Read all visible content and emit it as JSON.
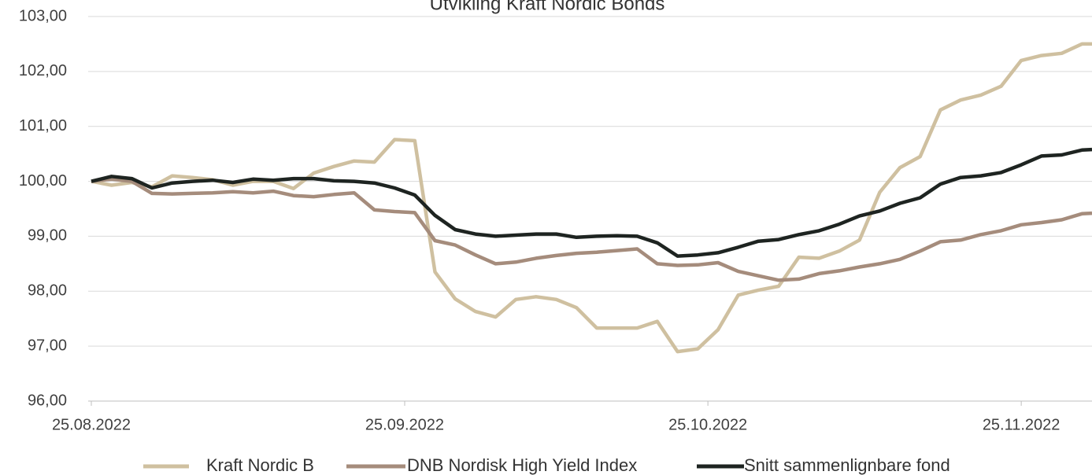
{
  "chart_data": {
    "type": "line",
    "title": "Utvikling Kraft Nordic Bonds",
    "x": [
      "25.08.2022",
      "27.08.2022",
      "29.08.2022",
      "31.08.2022",
      "02.09.2022",
      "04.09.2022",
      "06.09.2022",
      "08.09.2022",
      "10.09.2022",
      "12.09.2022",
      "14.09.2022",
      "16.09.2022",
      "18.09.2022",
      "20.09.2022",
      "22.09.2022",
      "24.09.2022",
      "26.09.2022",
      "28.09.2022",
      "30.09.2022",
      "02.10.2022",
      "04.10.2022",
      "06.10.2022",
      "08.10.2022",
      "10.10.2022",
      "12.10.2022",
      "14.10.2022",
      "16.10.2022",
      "18.10.2022",
      "20.10.2022",
      "22.10.2022",
      "24.10.2022",
      "26.10.2022",
      "28.10.2022",
      "30.10.2022",
      "01.11.2022",
      "03.11.2022",
      "05.11.2022",
      "07.11.2022",
      "09.11.2022",
      "11.11.2022",
      "13.11.2022",
      "15.11.2022",
      "17.11.2022",
      "19.11.2022",
      "21.11.2022",
      "23.11.2022",
      "25.11.2022",
      "27.11.2022",
      "29.11.2022",
      "01.12.2022",
      "02.12.2022"
    ],
    "series": [
      {
        "name": "Kraft Nordic B",
        "color": "#cfc0a0",
        "values": [
          100.0,
          99.93,
          99.98,
          99.9,
          100.1,
          100.07,
          100.03,
          99.93,
          100.0,
          100.0,
          99.87,
          100.15,
          100.27,
          100.37,
          100.35,
          100.76,
          100.74,
          98.35,
          97.86,
          97.63,
          97.53,
          97.85,
          97.9,
          97.85,
          97.7,
          97.33,
          97.33,
          97.33,
          97.45,
          96.9,
          96.95,
          97.3,
          97.93,
          98.02,
          98.09,
          98.62,
          98.6,
          98.73,
          98.93,
          99.8,
          100.25,
          100.45,
          101.3,
          101.48,
          101.57,
          101.73,
          102.2,
          102.29,
          102.33,
          102.5,
          102.5
        ]
      },
      {
        "name": "DNB Nordisk High Yield Index",
        "color": "#a58c7c",
        "values": [
          100.0,
          100.04,
          100.0,
          99.78,
          99.77,
          99.78,
          99.79,
          99.81,
          99.79,
          99.82,
          99.74,
          99.72,
          99.76,
          99.79,
          99.48,
          99.45,
          99.43,
          98.92,
          98.84,
          98.66,
          98.5,
          98.53,
          98.6,
          98.65,
          98.69,
          98.71,
          98.74,
          98.77,
          98.5,
          98.47,
          98.48,
          98.52,
          98.36,
          98.28,
          98.2,
          98.22,
          98.32,
          98.37,
          98.44,
          98.5,
          98.58,
          98.73,
          98.9,
          98.93,
          99.03,
          99.1,
          99.21,
          99.25,
          99.3,
          99.41,
          99.42
        ]
      },
      {
        "name": "Snitt sammenlignbare fond",
        "color": "#1e2421",
        "values": [
          100.0,
          100.09,
          100.05,
          99.88,
          99.97,
          100.0,
          100.02,
          99.98,
          100.04,
          100.02,
          100.05,
          100.05,
          100.01,
          100.0,
          99.97,
          99.88,
          99.75,
          99.38,
          99.12,
          99.04,
          99.0,
          99.02,
          99.04,
          99.04,
          98.98,
          99.0,
          99.01,
          99.0,
          98.88,
          98.64,
          98.66,
          98.7,
          98.8,
          98.91,
          98.94,
          99.03,
          99.1,
          99.22,
          99.37,
          99.46,
          99.6,
          99.7,
          99.95,
          100.07,
          100.1,
          100.16,
          100.3,
          100.46,
          100.48,
          100.57,
          100.58
        ]
      }
    ],
    "xlim": [
      "25.08.2022",
      "02.12.2022"
    ],
    "xticks": [
      "25.08.2022",
      "25.09.2022",
      "25.10.2022",
      "25.11.2022"
    ],
    "ylim": [
      96,
      103
    ],
    "yticks": [
      {
        "value": 96,
        "label": "96,00"
      },
      {
        "value": 97,
        "label": "97,00"
      },
      {
        "value": 98,
        "label": "98,00"
      },
      {
        "value": 99,
        "label": "99,00"
      },
      {
        "value": 100,
        "label": "100,00"
      },
      {
        "value": 101,
        "label": "101,00"
      },
      {
        "value": 102,
        "label": "102,00"
      },
      {
        "value": 103,
        "label": "103,00"
      }
    ],
    "grid": true,
    "legend": "bottom"
  }
}
